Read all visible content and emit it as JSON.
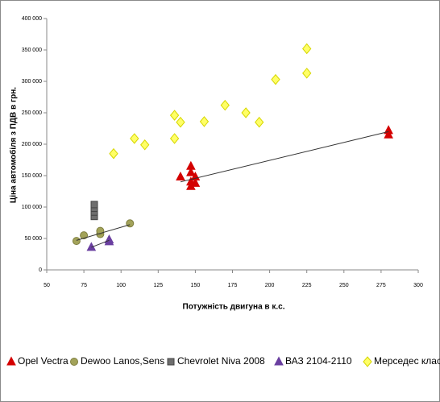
{
  "chart_data": {
    "type": "scatter",
    "x_label": "Потужність двигуна в к.с.",
    "y_label": "Ціна автомобіля з ПДВ в грн.",
    "xlim": [
      50,
      300
    ],
    "xticks": [
      50,
      75,
      100,
      125,
      150,
      175,
      200,
      225,
      250,
      275,
      300
    ],
    "ylim": [
      0,
      400000
    ],
    "yticks": [
      0,
      {
        "value": 50000,
        "label": "50 000"
      },
      {
        "value": 100000,
        "label": "100 000"
      },
      {
        "value": 150000,
        "label": "150 000"
      },
      {
        "value": 200000,
        "label": "200 000"
      },
      {
        "value": 250000,
        "label": "250 000"
      },
      {
        "value": 300000,
        "label": "300 000"
      },
      {
        "value": 350000,
        "label": "350 000"
      },
      {
        "value": 400000,
        "label": "400 000"
      }
    ],
    "legend": "bottom",
    "series": [
      {
        "name": "Opel Vectra",
        "color": "#d40000",
        "marker": "triangle",
        "x": [
          280,
          280,
          140,
          147,
          147,
          147,
          147,
          150,
          150
        ],
        "values": [
          222000,
          215000,
          148000,
          165000,
          155000,
          140000,
          133000,
          148000,
          138000
        ],
        "trendline": {
          "x": [
            140,
            280
          ],
          "y": [
            140000,
            220000
          ]
        }
      },
      {
        "name": "Dewoo Lanos,Sens",
        "color": "#a3a35a",
        "marker": "circle",
        "x": [
          70,
          75,
          86,
          86,
          106
        ],
        "values": [
          46000,
          55000,
          57000,
          62000,
          74000
        ],
        "trendline": {
          "x": [
            70,
            106
          ],
          "y": [
            47000,
            72000
          ]
        }
      },
      {
        "name": "Chevrolet Niva 2008",
        "color": "#6e6e6e",
        "marker": "square",
        "x": [
          82,
          82,
          82,
          82
        ],
        "values": [
          85000,
          92000,
          98000,
          104000
        ]
      },
      {
        "name": "ВАЗ 2104-2110",
        "color": "#6a3fa0",
        "marker": "triangle",
        "x": [
          80,
          92,
          92
        ],
        "values": [
          36000,
          45000,
          48000
        ],
        "trendline": {
          "x": [
            80,
            92
          ],
          "y": [
            36000,
            47000
          ]
        }
      },
      {
        "name": "Мерседес класов В и С",
        "color": "#ffff66",
        "marker": "diamond",
        "x": [
          95,
          109,
          116,
          136,
          136,
          140,
          156,
          170,
          184,
          193,
          204,
          225,
          225
        ],
        "values": [
          185000,
          209000,
          199000,
          246000,
          209000,
          235000,
          236000,
          262000,
          250000,
          235000,
          303000,
          352000,
          313000
        ]
      }
    ]
  }
}
